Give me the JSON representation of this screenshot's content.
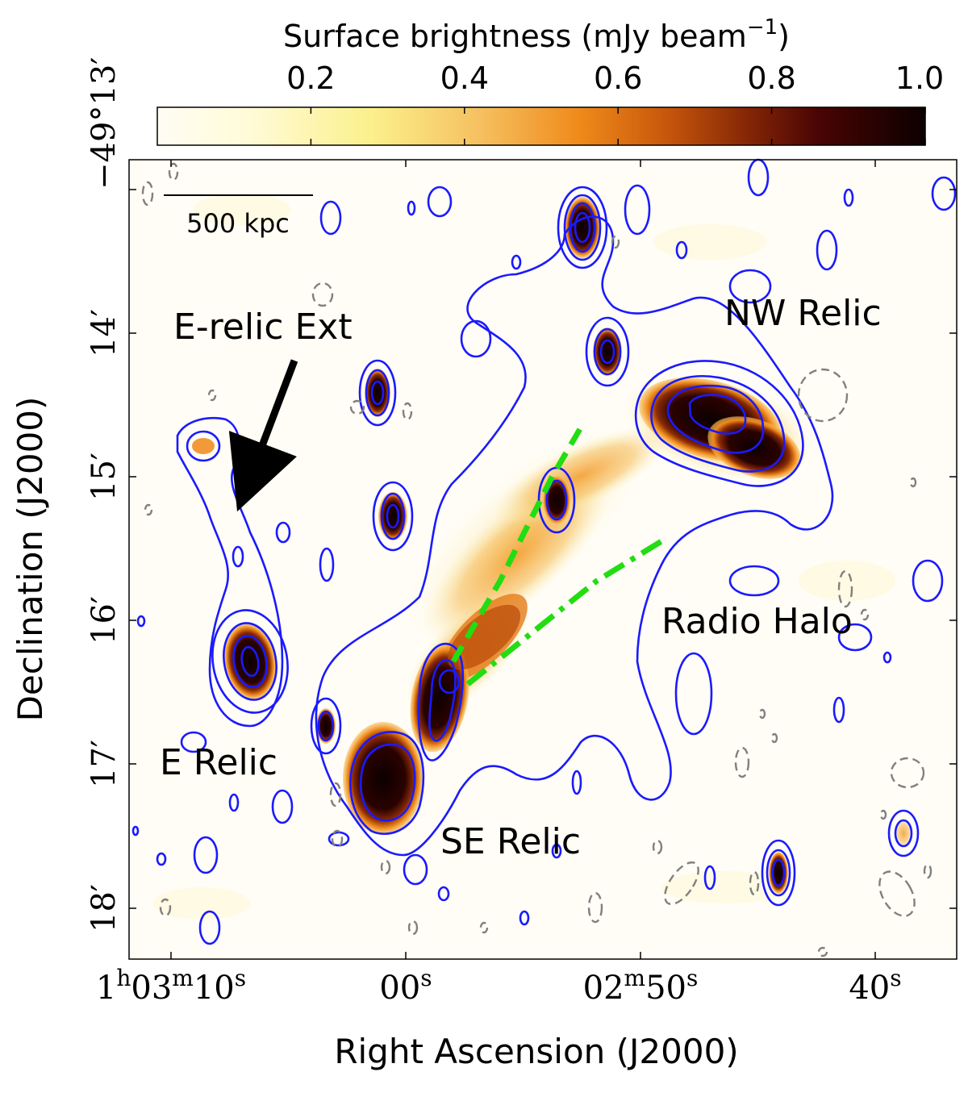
{
  "colorbar": {
    "title": "Surface brightness (mJy beam",
    "title_exponent": "−1",
    "title_close": ")",
    "ticks": [
      "0.2",
      "0.4",
      "0.6",
      "0.8",
      "1.0"
    ],
    "tick_values": [
      0.2,
      0.4,
      0.6,
      0.8,
      1.0
    ],
    "range": [
      0.0,
      1.0
    ],
    "colormap": [
      "#fffdf4",
      "#fff7c0",
      "#fbe88a",
      "#f6b95b",
      "#ef8a1a",
      "#c9580c",
      "#8a2a06",
      "#4a0404",
      "#0c0000"
    ]
  },
  "axes": {
    "xlabel": "Right Ascension (J2000)",
    "ylabel": "Declination (J2000)",
    "xticks": [
      {
        "value": "1h03m10s",
        "h": "1",
        "hu": "h",
        "m": "03",
        "mu": "m",
        "s": "10",
        "su": "s"
      },
      {
        "value": "00s",
        "s": "00",
        "su": "s"
      },
      {
        "value": "02m50s",
        "m": "02",
        "mu": "m",
        "s": "50",
        "su": "s"
      },
      {
        "value": "40s",
        "s": "40",
        "su": "s"
      }
    ],
    "yticks": [
      {
        "label": "−49°13′"
      },
      {
        "label": "14′"
      },
      {
        "label": "15′"
      },
      {
        "label": "16′"
      },
      {
        "label": "17′"
      },
      {
        "label": "18′"
      }
    ]
  },
  "scalebar": {
    "label": "500 kpc"
  },
  "annotations": {
    "nw_relic": "NW Relic",
    "e_relic_ext": "E-relic Ext",
    "radio_halo": "Radio Halo",
    "e_relic": "E Relic",
    "se_relic": "SE Relic"
  },
  "colors": {
    "contour": "#1a1aff",
    "negative_contour": "#808080",
    "guide_lines": "#22dd11",
    "arrow": "#000000"
  }
}
